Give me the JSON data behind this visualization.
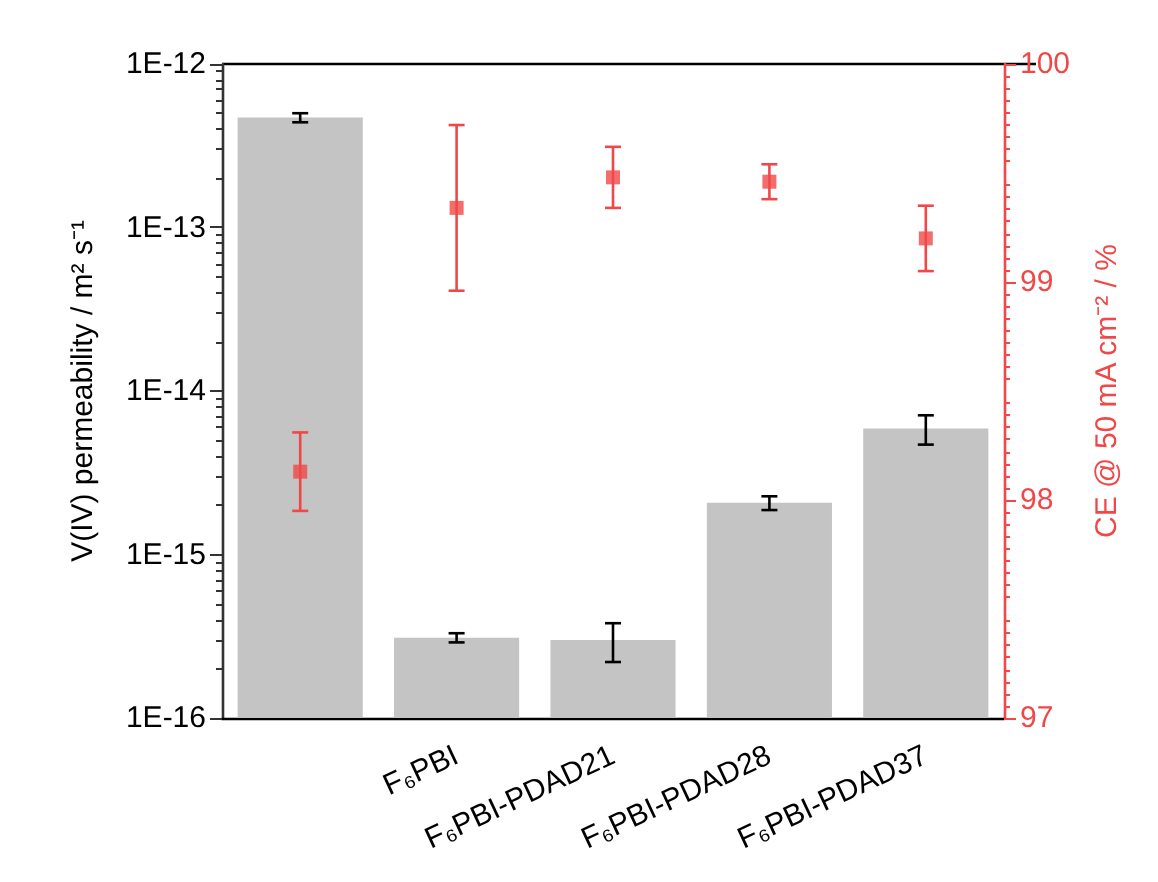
{
  "chart_data": {
    "type": "bar",
    "categories": [
      null,
      "F₆PBI",
      "F₆PBI-PDAD21",
      "F₆PBI-PDAD28",
      "F₆PBI-PDAD37"
    ],
    "ylabel": "V(IV) permeability / m² s⁻¹",
    "y2label": "CE @ 50 mA cm⁻² / %",
    "log": "y",
    "ylim": [
      1e-16,
      1e-12
    ],
    "yticks": [
      {
        "value": 1e-16,
        "label": "1E-16"
      },
      {
        "value": 1e-15,
        "label": "1E-15"
      },
      {
        "value": 1e-14,
        "label": "1E-14"
      },
      {
        "value": 1e-13,
        "label": "1E-13"
      },
      {
        "value": 1e-12,
        "label": "1E-12"
      }
    ],
    "y2lim": [
      97,
      100
    ],
    "y2ticks": [
      97,
      98,
      99,
      100
    ],
    "grid": false,
    "series": [
      {
        "color": "#c4c4c4",
        "values": [
          4.7e-13,
          3.1e-16,
          3e-16,
          2.07e-15,
          5.9e-15
        ],
        "errors": [
          3e-14,
          2e-17,
          8e-17,
          2e-16,
          1.2e-15
        ]
      },
      {
        "type": "scatter",
        "axis": "y2",
        "color": "#f04848",
        "marker": "square",
        "values": [
          98.13,
          99.34,
          99.48,
          99.46,
          99.2
        ],
        "errors": [
          0.18,
          0.38,
          0.14,
          0.08,
          0.15
        ]
      }
    ]
  }
}
